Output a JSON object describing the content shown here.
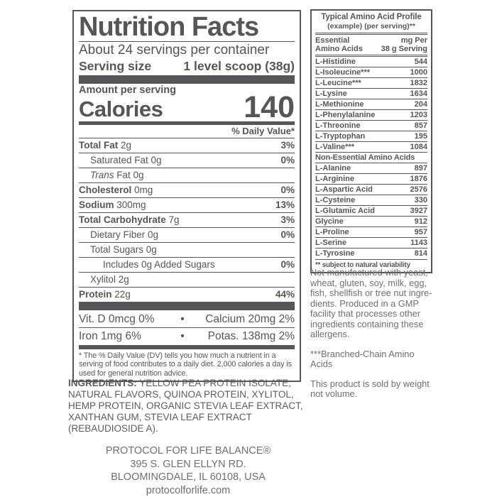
{
  "colors": {
    "label_dark": "#54565a",
    "ingredients_gray": "#5b5c5e",
    "notes_gray": "#6e6f72",
    "background": "#ffffff"
  },
  "nutrition_facts": {
    "title": "Nutrition Facts",
    "servings_per_container": "About 24 servings per container",
    "serving_size_label": "Serving size",
    "serving_size_value": "1 level scoop (38g)",
    "amount_per_serving": "Amount per serving",
    "calories_label": "Calories",
    "calories_value": "140",
    "daily_value_header": "% Daily Value*",
    "rows": [
      {
        "bold": "Total Fat",
        "reg": "2g",
        "dv": "3%",
        "indent": 0
      },
      {
        "reg": "Saturated Fat 0g",
        "dv": "0%",
        "indent": 1
      },
      {
        "italic": "Trans",
        "reg": "Fat 0g",
        "dv": "",
        "indent": 1
      },
      {
        "bold": "Cholesterol",
        "reg": "0mg",
        "dv": "0%",
        "indent": 0
      },
      {
        "bold": "Sodium",
        "reg": "300mg",
        "dv": "13%",
        "indent": 0
      },
      {
        "bold": "Total Carbohydrate",
        "reg": "7g",
        "dv": "3%",
        "indent": 0
      },
      {
        "reg": "Dietary Fiber 0g",
        "dv": "0%",
        "indent": 1
      },
      {
        "reg": "Total Sugars 0g",
        "dv": "",
        "indent": 1
      },
      {
        "reg": "Includes 0g Added Sugars",
        "dv": "0%",
        "indent": 2
      },
      {
        "reg": "Xylitol 2g",
        "dv": "",
        "indent": 1
      },
      {
        "bold": "Protein",
        "reg": "22g",
        "dv": "44%",
        "indent": 0
      }
    ],
    "micronutrients": [
      {
        "left": "Vit. D 0mcg 0%",
        "bullet": "•",
        "right": "Calcium 20mg 2%"
      },
      {
        "left": "Iron 1mg 6%",
        "bullet": "•",
        "right": "Potas. 138mg 2%"
      }
    ],
    "footnote": "* The % Daily Value (DV) tells you how much a nutrient in a serving of food contributes to a daily diet. 2,000 calories a day is used for general nutrition advice."
  },
  "amino_acid_table": {
    "title": "Typical Amino Acid Profile",
    "subtitle": "(example) (per serving)**",
    "col_header_left": "Essential\nAmino Acids",
    "col_header_right": "mg Per\n38 g Serving",
    "essential_rows": [
      {
        "name": "L-Histidine",
        "value": "544"
      },
      {
        "name": "L-Isoleucine***",
        "value": "1000"
      },
      {
        "name": "L-Leucine***",
        "value": "1832"
      },
      {
        "name": "L-Lysine",
        "value": "1634"
      },
      {
        "name": "L-Methionine",
        "value": "204"
      },
      {
        "name": "L-Phenylalanine",
        "value": "1203"
      },
      {
        "name": "L-Threonine",
        "value": "857"
      },
      {
        "name": "L-Tryptophan",
        "value": "195"
      },
      {
        "name": "L-Valine***",
        "value": "1084"
      }
    ],
    "non_essential_header": "Non-Essential Amino Acids",
    "non_essential_rows": [
      {
        "name": "L-Alanine",
        "value": "897"
      },
      {
        "name": "L-Arginine",
        "value": "1876"
      },
      {
        "name": "L-Aspartic Acid",
        "value": "2576"
      },
      {
        "name": "L-Cysteine",
        "value": "330"
      },
      {
        "name": "L-Glutamic Acid",
        "value": "3927"
      },
      {
        "name": "Glycine",
        "value": "912"
      },
      {
        "name": "L-Proline",
        "value": "957"
      },
      {
        "name": "L-Serine",
        "value": "1143"
      },
      {
        "name": "L-Tyrosine",
        "value": "814"
      }
    ],
    "footnote": "** subject to natural variability"
  },
  "side_notes": {
    "allergen_note": "Not manufactured with yeast,\nwheat, gluten, soy, milk, egg,\nfish, shellfish or tree nut ingre-\ndients. Produced in a GMP\nfacility that processes other\ningredients containing these\nallergens.",
    "bcaa_note": "***Branched-Chain Amino\nAcids",
    "weight_note": "This product is sold by weight\nnot volume."
  },
  "ingredients": {
    "label": "INGREDIENTS:",
    "text": " YELLOW PEA PROTEIN ISOLATE,\nNATURAL FLAVORS, QUINOA PROTEIN, XYLITOL,\nHEMP PROTEIN, ORGANIC STEVIA LEAF EXTRACT,\nXANTHAN GUM, STEVIA LEAF EXTRACT\n(REBAUDIOSIDE A)."
  },
  "address": {
    "lines": "PROTOCOL FOR LIFE BALANCE®\n395 S. GLEN ELLYN RD.\nBLOOMINGDALE, IL 60108, USA",
    "website": "protocolforlife.com"
  }
}
